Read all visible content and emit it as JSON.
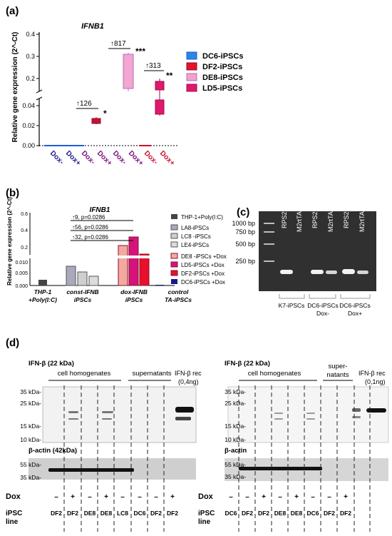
{
  "panel_a": {
    "label": "(a)",
    "title": "IFNB1",
    "ylabel": "Relative gene expression (2^-Ct)",
    "yticks_top": [
      "0.4",
      "0.3",
      "0.2"
    ],
    "yticks_bottom": [
      "0.04",
      "0.02",
      "0.00"
    ],
    "ann_126": "↑126",
    "ann_817": "↑817",
    "ann_313": "↑313",
    "star1": "*",
    "star3": "***",
    "star2": "**",
    "xticks": [
      "Dox-",
      "Dox+",
      "Dox-",
      "Dox+",
      "Dox-",
      "Dox+",
      "Dox-",
      "Dox+"
    ],
    "legend": [
      "DC6-iPSCs",
      "DF2-iPSCs",
      "DE8-iPSCs",
      "LD5-iPSCs"
    ],
    "colors": {
      "DC6": "#2e86de",
      "DF2": "#e8102a",
      "DE8": "#f2a3c8",
      "LD5": "#e2176e"
    }
  },
  "panel_b": {
    "label": "(b)",
    "title": "IFNB1",
    "ylabel": "Relative gene expression (2^-Ct)",
    "yticks_top": [
      "0.6",
      "0.4",
      "0.2"
    ],
    "yticks_bottom": [
      "0.010",
      "0.005",
      "0.000"
    ],
    "ann1": "↑9, p=0.0286",
    "ann2": "↑56, p=0.0286",
    "ann3": "↑32, p=0.0286",
    "groups": [
      {
        "l1": "THP-1",
        "l2": "+Poly(I:C)"
      },
      {
        "l1": "const-IFNB",
        "l2": "iPSCs"
      },
      {
        "l1": "dox-IFNB",
        "l2": "iPSCs"
      },
      {
        "l1": "control",
        "l2": "TA-iPSCs"
      }
    ],
    "legend": [
      "THP-1+Poly(I:C)",
      "LA8-iPSCs",
      "LC8 -iPSCs",
      "LE4-iPSCs",
      "DE8 -iPSCs +Dox",
      "LD5-iPSCs +Dox",
      "DF2-iPSCs +Dox",
      "DC6-iPSCs +Dox"
    ]
  },
  "panel_c": {
    "label": "(c)",
    "ladder": [
      "1000 bp",
      "750 bp",
      "500 bp",
      "250 bp"
    ],
    "lanes": [
      "RPS29",
      "M2rtTA",
      "RPS29",
      "M2rtTA",
      "RPS29",
      "M2rtTA"
    ],
    "group1": "K7-iPSCs",
    "group2_l1": "DC6-iPSCs",
    "group2_l2": "Dox-",
    "group3_l1": "DC6-iPSCs",
    "group3_l2": "Dox+"
  },
  "panel_d": {
    "label": "(d)",
    "left": {
      "title": "IFN-β (22 kDa)",
      "homog": "cell homogenates",
      "super": "supernatants",
      "rec": "IFN-β rec",
      "rec2": "(0,4ng)",
      "mw": [
        "35 kDa-",
        "25 kDa-",
        "15 kDa-",
        "10 kDa-"
      ],
      "actin_title": "β-actin (42kDa)",
      "actin_mw": [
        "55 kDa-",
        "35 kDa-"
      ],
      "dox_label": "Dox",
      "dox": [
        "–",
        "+",
        "–",
        "+",
        "–",
        "–",
        "–",
        "+"
      ],
      "line_label1": "iPSC",
      "line_label2": "line",
      "lines": [
        "DF2",
        "DF2",
        "DE8",
        "DE8",
        "LC8",
        "DC6",
        "DF2",
        "DF2"
      ]
    },
    "right": {
      "title": "IFN-β (22 kDa)",
      "homog": "cell homogenates",
      "super1": "super-",
      "super2": "natants",
      "rec": "IFN-β rec",
      "rec2": "(0,1ng)",
      "mw": [
        "35 kDa-",
        "25 kDa-",
        "15 kDa-",
        "10 kDa-"
      ],
      "actin_title": "β-actin",
      "actin_mw": [
        "55 kDa-",
        "35 kDa-"
      ],
      "dox_label": "Dox",
      "dox": [
        "–",
        "–",
        "+",
        "–",
        "+",
        "–",
        "–",
        "+"
      ],
      "line_label1": "iPSC",
      "line_label2": "line",
      "lines": [
        "DC6",
        "DF2",
        "DF2",
        "DE8",
        "DE8",
        "DC6",
        "DF2",
        "DF2"
      ]
    }
  }
}
